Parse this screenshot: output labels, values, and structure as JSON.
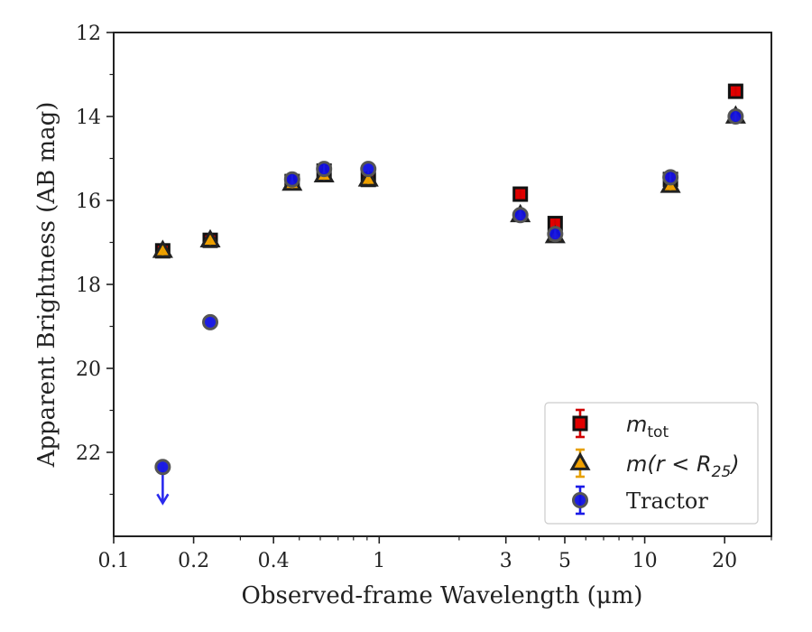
{
  "chart_data": {
    "type": "scatter",
    "xlabel": "Observed-frame Wavelength (μm)",
    "ylabel": "Apparent Brightness (AB mag)",
    "x_scale": "log",
    "xlim": [
      0.1,
      30
    ],
    "ylim": [
      24,
      12
    ],
    "y_inverted": true,
    "x_ticks": [
      0.1,
      0.2,
      0.4,
      1,
      3,
      5,
      10,
      20
    ],
    "x_tick_labels": [
      "0.1",
      "0.2",
      "0.4",
      "1",
      "3",
      "5",
      "10",
      "20"
    ],
    "y_ticks": [
      12,
      14,
      16,
      18,
      20,
      22
    ],
    "y_tick_labels": [
      "12",
      "14",
      "16",
      "18",
      "20",
      "22"
    ],
    "grid": false,
    "legend_position": "lower-right",
    "series": [
      {
        "name": "m_tot",
        "legend_main": "m",
        "legend_sub": "tot",
        "marker": "square",
        "fill": "#e00000",
        "edge": "#111111",
        "err_color": "#d00000",
        "x": [
          0.153,
          0.231,
          0.47,
          0.62,
          0.91,
          3.4,
          4.6,
          12.5,
          22.0
        ],
        "y": [
          17.2,
          16.95,
          15.55,
          15.3,
          15.5,
          15.85,
          16.55,
          15.5,
          13.4
        ]
      },
      {
        "name": "m(r < R25)",
        "legend_main": "m(r < R",
        "legend_sub": "25",
        "legend_tail": ")",
        "marker": "triangle",
        "fill": "#f0a000",
        "edge": "#222222",
        "err_color": "#e6a000",
        "x": [
          0.153,
          0.231,
          0.47,
          0.62,
          0.91,
          3.4,
          4.6,
          12.5,
          22.0
        ],
        "y": [
          17.2,
          16.95,
          15.6,
          15.4,
          15.5,
          16.35,
          16.85,
          15.65,
          14.0
        ]
      },
      {
        "name": "Tractor",
        "marker": "circle",
        "fill": "#1010e0",
        "edge": "#555555",
        "err_color": "#1a1ae6",
        "x": [
          0.153,
          0.231,
          0.47,
          0.62,
          0.91,
          3.4,
          4.6,
          12.5,
          22.0
        ],
        "y": [
          22.35,
          18.9,
          15.5,
          15.25,
          15.25,
          16.35,
          16.8,
          15.45,
          14.0
        ],
        "upper_limit": [
          true,
          false,
          false,
          false,
          false,
          false,
          false,
          false,
          false
        ]
      }
    ]
  }
}
